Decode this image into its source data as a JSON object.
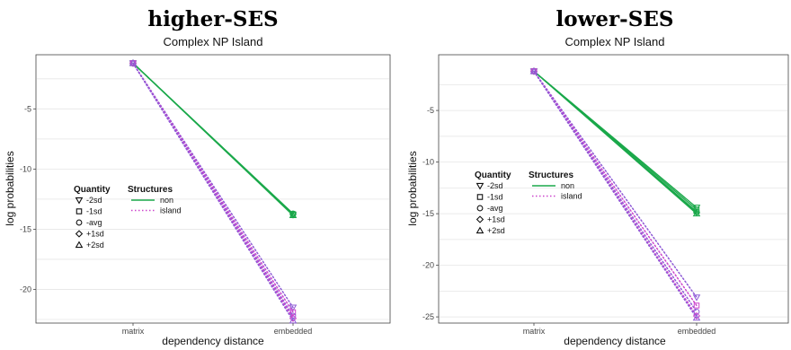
{
  "colors": {
    "non": "#1aa84a",
    "island": "#cc44cc",
    "island_alt": "#8e5ad6",
    "grid": "#e6e6e6",
    "frame": "#444444"
  },
  "legend": {
    "quantity_title": "Quantity",
    "structures_title": "Structures",
    "quantity": [
      {
        "label": "-2sd",
        "shape": "triangle-down"
      },
      {
        "label": "-1sd",
        "shape": "square"
      },
      {
        "label": "-avg",
        "shape": "circle"
      },
      {
        "label": "+1sd",
        "shape": "diamond"
      },
      {
        "label": "+2sd",
        "shape": "triangle-up"
      }
    ],
    "structures": [
      {
        "label": "non",
        "series": "non"
      },
      {
        "label": "island",
        "series": "island"
      }
    ]
  },
  "chart_data": [
    {
      "type": "line",
      "title": "higher-SES",
      "subtitle": "Complex NP Island",
      "xlabel": "dependency distance",
      "ylabel": "log probabilities",
      "categories": [
        "matrix",
        "embedded"
      ],
      "ylim": [
        -22.8,
        -0.5
      ],
      "yticks": [
        -5,
        -10,
        -15,
        -20
      ],
      "grid": true,
      "legend_position": "left-center",
      "series": [
        {
          "structure": "non",
          "quantity": "-2sd",
          "values": [
            -1.2,
            -13.8
          ]
        },
        {
          "structure": "non",
          "quantity": "-1sd",
          "values": [
            -1.2,
            -13.75
          ]
        },
        {
          "structure": "non",
          "quantity": "-avg",
          "values": [
            -1.2,
            -13.7
          ]
        },
        {
          "structure": "non",
          "quantity": "+1sd",
          "values": [
            -1.2,
            -13.75
          ]
        },
        {
          "structure": "non",
          "quantity": "+2sd",
          "values": [
            -1.2,
            -13.85
          ]
        },
        {
          "structure": "island",
          "quantity": "-2sd",
          "values": [
            -1.2,
            -21.5
          ]
        },
        {
          "structure": "island",
          "quantity": "-1sd",
          "values": [
            -1.2,
            -21.9
          ]
        },
        {
          "structure": "island",
          "quantity": "-avg",
          "values": [
            -1.2,
            -22.2
          ]
        },
        {
          "structure": "island",
          "quantity": "+1sd",
          "values": [
            -1.2,
            -22.4
          ]
        },
        {
          "structure": "island",
          "quantity": "+2sd",
          "values": [
            -1.2,
            -22.6
          ]
        }
      ]
    },
    {
      "type": "line",
      "title": "lower-SES",
      "subtitle": "Complex NP Island",
      "xlabel": "dependency distance",
      "ylabel": "log probabilities",
      "categories": [
        "matrix",
        "embedded"
      ],
      "ylim": [
        -25.6,
        0.4
      ],
      "yticks": [
        -5,
        -10,
        -15,
        -20,
        -25
      ],
      "grid": true,
      "legend_position": "left-center",
      "series": [
        {
          "structure": "non",
          "quantity": "-2sd",
          "values": [
            -1.2,
            -14.4
          ]
        },
        {
          "structure": "non",
          "quantity": "-1sd",
          "values": [
            -1.2,
            -14.6
          ]
        },
        {
          "structure": "non",
          "quantity": "-avg",
          "values": [
            -1.2,
            -14.8
          ]
        },
        {
          "structure": "non",
          "quantity": "+1sd",
          "values": [
            -1.2,
            -14.9
          ]
        },
        {
          "structure": "non",
          "quantity": "+2sd",
          "values": [
            -1.2,
            -15.0
          ]
        },
        {
          "structure": "island",
          "quantity": "-2sd",
          "values": [
            -1.2,
            -23.1
          ]
        },
        {
          "structure": "island",
          "quantity": "-1sd",
          "values": [
            -1.2,
            -23.9
          ]
        },
        {
          "structure": "island",
          "quantity": "-avg",
          "values": [
            -1.2,
            -24.5
          ]
        },
        {
          "structure": "island",
          "quantity": "+1sd",
          "values": [
            -1.2,
            -24.9
          ]
        },
        {
          "structure": "island",
          "quantity": "+2sd",
          "values": [
            -1.2,
            -25.1
          ]
        }
      ]
    }
  ]
}
